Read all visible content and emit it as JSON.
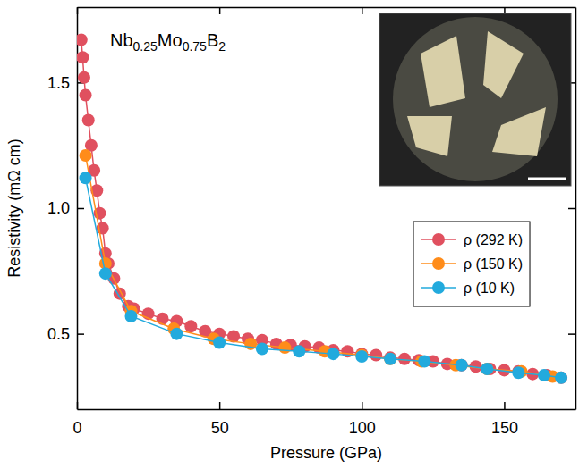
{
  "chart_data": {
    "type": "line",
    "annotation": "Nb0.25Mo0.75B2",
    "x_label": "Pressure (GPa)",
    "y_label": "Resistivity (mΩ cm)",
    "xlim": [
      0,
      175
    ],
    "ylim": [
      0.2,
      1.8
    ],
    "xticks": [
      0,
      50,
      100,
      150
    ],
    "yticks": [
      0.5,
      {
        "value": 1,
        "label": "1.0"
      },
      1.5
    ],
    "legend": "right",
    "marker": "circle",
    "series": [
      {
        "name": "ρ (292 K)",
        "color": "#e0505f",
        "x": [
          1.5,
          2,
          2.5,
          3,
          4,
          5,
          6,
          7,
          8,
          9,
          10,
          11,
          13,
          15,
          18,
          20,
          25,
          30,
          35,
          40,
          45,
          50,
          55,
          60,
          65,
          70,
          75,
          80,
          85,
          90,
          95,
          100,
          105,
          110,
          115,
          120,
          125,
          130,
          135,
          140,
          145,
          150,
          155,
          160,
          165,
          170
        ],
        "values": [
          1.67,
          1.6,
          1.52,
          1.45,
          1.35,
          1.25,
          1.15,
          1.07,
          0.98,
          0.92,
          0.82,
          0.78,
          0.72,
          0.66,
          0.61,
          0.6,
          0.58,
          0.56,
          0.55,
          0.53,
          0.51,
          0.5,
          0.49,
          0.48,
          0.475,
          0.46,
          0.455,
          0.45,
          0.445,
          0.435,
          0.43,
          0.42,
          0.415,
          0.405,
          0.4,
          0.395,
          0.39,
          0.38,
          0.375,
          0.37,
          0.36,
          0.355,
          0.35,
          0.34,
          0.335,
          0.325
        ]
      },
      {
        "name": "ρ (150 K)",
        "color": "#ff8c1a",
        "x": [
          3,
          10,
          19,
          34,
          48,
          61,
          73,
          87,
          100,
          110,
          121,
          133,
          144,
          156,
          167
        ],
        "values": [
          1.21,
          0.78,
          0.59,
          0.52,
          0.48,
          0.46,
          0.445,
          0.43,
          0.415,
          0.4,
          0.39,
          0.375,
          0.36,
          0.35,
          0.33
        ]
      },
      {
        "name": "ρ (10 K)",
        "color": "#22aadd",
        "x": [
          3,
          10,
          19,
          35,
          50,
          65,
          78,
          90,
          100,
          110,
          122,
          135,
          144,
          155,
          164,
          170
        ],
        "values": [
          1.12,
          0.74,
          0.57,
          0.5,
          0.465,
          0.44,
          0.43,
          0.42,
          0.41,
          0.4,
          0.39,
          0.375,
          0.36,
          0.345,
          0.335,
          0.325
        ]
      }
    ]
  }
}
